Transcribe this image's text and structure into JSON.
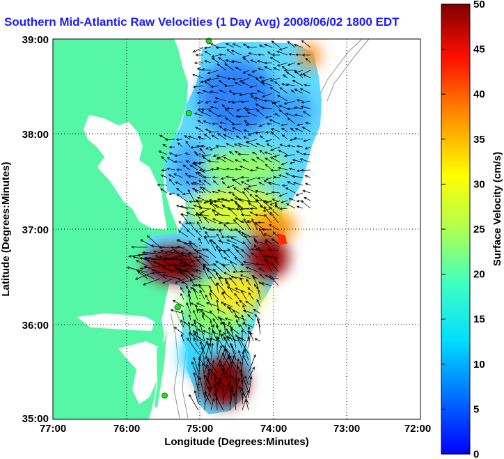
{
  "title": "Southern Mid-Atlantic Raw Velocities (1 Day Avg) 2008/06/02 1800 EDT",
  "xlabel": "Longitude (Degrees:Minutes)",
  "ylabel": "Latitude (Degrees:Minutes)",
  "colorbar_label": "Surface Velocity (cm/s)",
  "x_ticks": [
    "77:00",
    "76:00",
    "75:00",
    "74:00",
    "73:00",
    "72:00"
  ],
  "y_ticks": [
    "39:00",
    "38:00",
    "37:00",
    "36:00",
    "35:00"
  ],
  "colorbar_ticks": [
    "0",
    "5",
    "10",
    "15",
    "20",
    "25",
    "30",
    "35",
    "40",
    "45",
    "50"
  ],
  "colors": {
    "land": "#55f7a7",
    "ocean": "#ffffff",
    "title": "#1a1aff",
    "station": "#22dd22",
    "vector": "#000000"
  },
  "chart_data": {
    "type": "heatmap",
    "xlim": [
      -77,
      -72
    ],
    "ylim": [
      35,
      39
    ],
    "clim": [
      0,
      50
    ],
    "units": "cm/s",
    "colormap": "jet",
    "grid": true,
    "stations": [
      {
        "lon": -74.88,
        "lat": 38.98
      },
      {
        "lon": -75.15,
        "lat": 38.22
      },
      {
        "lon": -75.3,
        "lat": 36.18
      },
      {
        "lon": -75.48,
        "lat": 35.25
      }
    ]
  }
}
